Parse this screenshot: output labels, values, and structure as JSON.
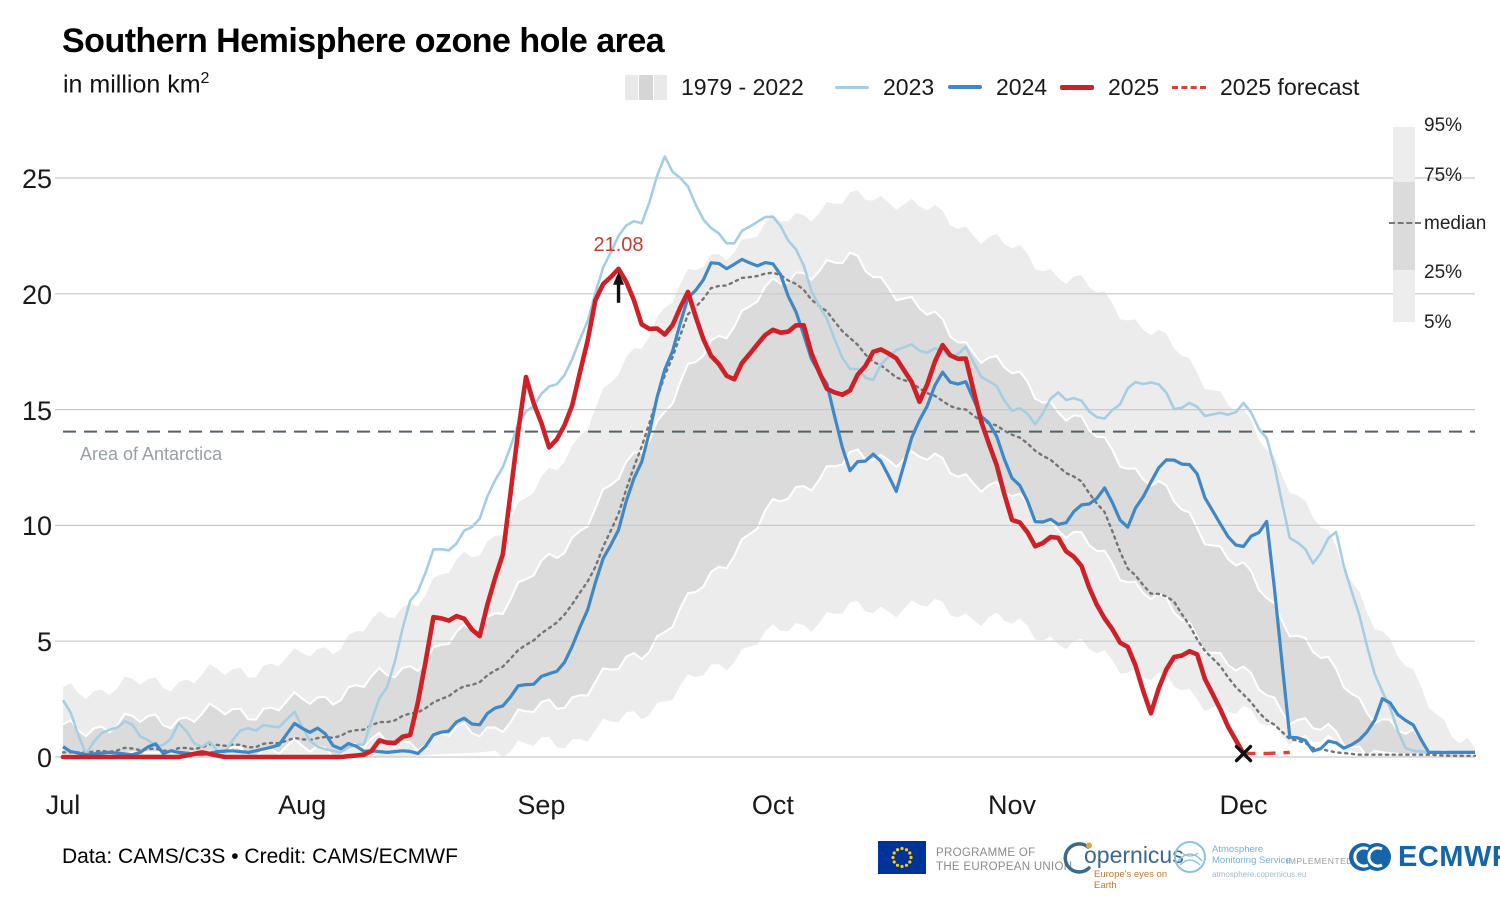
{
  "title": "Southern Hemisphere ozone hole area",
  "subtitle": {
    "text": "in million km",
    "sup": "2"
  },
  "legend": {
    "items": [
      {
        "label": "1979 - 2022",
        "type": "band"
      },
      {
        "label": "2023",
        "type": "line",
        "color": "#a6cee3"
      },
      {
        "label": "2024",
        "type": "line",
        "color": "#3f88c5"
      },
      {
        "label": "2025",
        "type": "line-thick",
        "color": "#ce2127"
      },
      {
        "label": "2025 forecast",
        "type": "line-dashed",
        "color": "#e23f3a"
      }
    ]
  },
  "percentile_legend": {
    "labels": [
      "95%",
      "75%",
      "median",
      "25%",
      "5%"
    ]
  },
  "chart_data": {
    "type": "line",
    "title": "Southern Hemisphere ozone hole area",
    "ylabel": "million km2",
    "x_axis": {
      "unit": "days since Jul 1",
      "months": [
        {
          "label": "Jul",
          "day": 0
        },
        {
          "label": "Aug",
          "day": 31
        },
        {
          "label": "Sep",
          "day": 62
        },
        {
          "label": "Oct",
          "day": 92
        },
        {
          "label": "Nov",
          "day": 123
        },
        {
          "label": "Dec",
          "day": 153
        }
      ],
      "range_days": [
        0,
        183
      ]
    },
    "y_axis": {
      "ticks": [
        0,
        5,
        10,
        15,
        20,
        25
      ],
      "range": [
        0,
        26.5
      ],
      "grid": true
    },
    "reference_line": {
      "label": "Area of Antarctica",
      "value": 14.05
    },
    "annotation": {
      "label": "21.08",
      "series": "2025",
      "day": 72,
      "value": 21.08
    },
    "end_marker": {
      "series": "2025",
      "day": 153,
      "value": 0.15,
      "symbol": "x"
    },
    "colors": {
      "outer_band": "#ececec",
      "inner_band": "#dbdbdb",
      "band_edge": "#ffffff",
      "median": "#757575",
      "y2023": "#a6cee3",
      "y2024": "#3f88c5",
      "y2025": "#ce2127",
      "forecast": "#e23f3a",
      "reference": "#51626a",
      "gridline": "#c9c9c9",
      "marker": "#111111"
    },
    "sample_days": [
      0,
      3,
      6,
      9,
      12,
      15,
      18,
      21,
      24,
      27,
      30,
      33,
      36,
      39,
      42,
      45,
      48,
      51,
      54,
      57,
      60,
      63,
      66,
      69,
      72,
      75,
      78,
      81,
      84,
      87,
      90,
      93,
      96,
      99,
      102,
      105,
      108,
      111,
      114,
      117,
      120,
      123,
      126,
      129,
      132,
      135,
      138,
      141,
      144,
      147,
      150,
      153,
      156,
      159,
      162,
      165,
      168,
      171,
      174,
      177,
      180,
      183
    ],
    "bands": {
      "p95": [
        2.8,
        2.9,
        3.0,
        3.1,
        3.2,
        3.3,
        3.5,
        3.6,
        3.8,
        4.0,
        4.2,
        4.6,
        5.0,
        5.5,
        6.0,
        6.7,
        7.5,
        8.2,
        9.0,
        10.0,
        11.0,
        12.2,
        13.5,
        15.0,
        16.5,
        18.0,
        19.5,
        20.6,
        21.5,
        22.1,
        22.6,
        23.1,
        23.5,
        23.8,
        24.0,
        24.2,
        24.1,
        23.7,
        23.3,
        22.9,
        22.4,
        21.9,
        21.4,
        20.9,
        20.4,
        19.8,
        19.1,
        18.4,
        17.6,
        16.7,
        15.7,
        14.6,
        13.3,
        11.9,
        10.4,
        8.8,
        7.1,
        5.4,
        3.8,
        2.4,
        1.2,
        0.4
      ],
      "p75": [
        1.2,
        1.3,
        1.4,
        1.5,
        1.6,
        1.7,
        1.8,
        1.9,
        2.0,
        2.1,
        2.3,
        2.5,
        2.8,
        3.1,
        3.5,
        4.0,
        4.5,
        5.1,
        5.8,
        6.6,
        7.5,
        8.5,
        9.5,
        10.7,
        12.0,
        13.5,
        15.0,
        16.5,
        17.8,
        18.9,
        19.8,
        20.4,
        21.0,
        21.3,
        21.4,
        20.9,
        20.2,
        19.3,
        18.6,
        17.9,
        17.2,
        16.5,
        15.8,
        15.1,
        14.3,
        13.5,
        12.7,
        11.9,
        11.0,
        10.0,
        9.0,
        8.0,
        6.9,
        5.7,
        4.6,
        3.5,
        2.5,
        1.6,
        0.9,
        0.4,
        0.2,
        0.1
      ],
      "p25": [
        0.1,
        0.1,
        0.1,
        0.2,
        0.2,
        0.2,
        0.2,
        0.3,
        0.3,
        0.3,
        0.3,
        0.4,
        0.4,
        0.5,
        0.6,
        0.7,
        0.8,
        1.0,
        1.2,
        1.5,
        1.8,
        2.2,
        2.6,
        3.2,
        3.8,
        4.6,
        5.5,
        6.6,
        7.8,
        9.0,
        10.0,
        11.0,
        11.8,
        12.4,
        12.8,
        13.0,
        13.0,
        12.9,
        12.6,
        12.2,
        11.7,
        11.2,
        10.6,
        10.0,
        9.3,
        8.6,
        7.8,
        7.0,
        6.2,
        5.3,
        4.4,
        3.5,
        2.7,
        1.9,
        1.3,
        0.8,
        0.4,
        0.2,
        0.1,
        0.1,
        0.0,
        0.0
      ],
      "p5": [
        0,
        0,
        0,
        0,
        0,
        0,
        0,
        0,
        0,
        0,
        0,
        0,
        0,
        0,
        0,
        0,
        0.1,
        0.15,
        0.2,
        0.3,
        0.4,
        0.6,
        0.8,
        1.1,
        1.5,
        2.0,
        2.5,
        3.1,
        3.8,
        4.4,
        5.0,
        5.4,
        5.8,
        6.1,
        6.3,
        6.4,
        6.5,
        6.5,
        6.4,
        6.2,
        6.0,
        5.7,
        5.4,
        5.1,
        4.7,
        4.3,
        3.9,
        3.5,
        3.0,
        2.6,
        2.2,
        1.8,
        1.4,
        1.0,
        0.7,
        0.4,
        0.2,
        0.1,
        0.0,
        0.0,
        0.0,
        0.0
      ]
    },
    "median": [
      0.2,
      0.2,
      0.3,
      0.3,
      0.3,
      0.4,
      0.4,
      0.5,
      0.5,
      0.6,
      0.7,
      0.8,
      1.0,
      1.2,
      1.5,
      1.9,
      2.3,
      2.8,
      3.3,
      4.0,
      4.8,
      5.5,
      6.6,
      8.2,
      10.5,
      13.5,
      16.5,
      19.0,
      20.2,
      20.6,
      20.8,
      20.8,
      20.2,
      19.2,
      18.0,
      17.1,
      16.5,
      15.9,
      15.3,
      15.0,
      14.4,
      13.9,
      13.3,
      12.6,
      11.8,
      10.5,
      8.2,
      7.1,
      6.7,
      5.1,
      3.9,
      2.6,
      1.6,
      0.9,
      0.4,
      0.2,
      0.1,
      0.1,
      0.1,
      0.1,
      0.05,
      0.05
    ],
    "lines": {
      "y2023": [
        2.3,
        0.4,
        1.4,
        1.2,
        0.3,
        1.5,
        0.4,
        0.2,
        1.5,
        1.3,
        1.6,
        0.4,
        0.2,
        0.6,
        3.0,
        6.8,
        8.8,
        9.0,
        10.5,
        12.8,
        14.8,
        15.8,
        17.2,
        20.0,
        22.5,
        23.3,
        26.0,
        24.3,
        22.7,
        22.4,
        23.2,
        22.9,
        21.3,
        18.8,
        16.5,
        16.4,
        17.9,
        17.5,
        17.3,
        17.7,
        16.2,
        14.9,
        14.6,
        15.9,
        15.1,
        14.4,
        16.1,
        16.3,
        15.0,
        15.2,
        14.8,
        15.0,
        13.8,
        9.8,
        8.4,
        9.5,
        6.1,
        2.8,
        0.3,
        0.2,
        0.2,
        0.2
      ],
      "y2024": [
        0.3,
        0.1,
        0.2,
        0.1,
        0.4,
        0.2,
        0.1,
        0.3,
        0.2,
        0.4,
        1.1,
        1.2,
        0.6,
        0.3,
        0.2,
        0.3,
        0.8,
        1.3,
        1.6,
        2.5,
        3.0,
        3.4,
        4.8,
        7.5,
        9.8,
        13.0,
        16.8,
        19.5,
        21.2,
        21.5,
        21.3,
        20.8,
        18.3,
        16.0,
        12.1,
        13.2,
        11.8,
        14.5,
        16.4,
        16.2,
        14.4,
        12.0,
        10.4,
        10.2,
        10.6,
        11.4,
        10.1,
        12.0,
        12.8,
        12.3,
        10.0,
        8.8,
        10.2,
        1.2,
        0.3,
        0.4,
        0.7,
        2.5,
        1.5,
        0.2,
        0.2,
        0.2
      ],
      "y2025": [
        0,
        0,
        0,
        0,
        0,
        0,
        0.2,
        0,
        0,
        0,
        0,
        0,
        0,
        0.1,
        0.6,
        1.0,
        5.9,
        5.9,
        5.4,
        9.0,
        16.3,
        13.2,
        15.2,
        19.7,
        21.08,
        18.9,
        18.3,
        19.8,
        17.2,
        16.5,
        17.9,
        18.3,
        18.7,
        15.8,
        15.6,
        17.6,
        17.5,
        15.3,
        17.6,
        17.2,
        13.5,
        10.2,
        9.3,
        9.6,
        8.0,
        5.8,
        4.9,
        2.0,
        4.3,
        4.5,
        2.0,
        0.15,
        null,
        null,
        null,
        null,
        null,
        null,
        null,
        null,
        null,
        null
      ]
    },
    "forecast": {
      "days": [
        153,
        156,
        159
      ],
      "values": [
        0.15,
        0.15,
        0.2
      ]
    }
  },
  "footer": {
    "credit": "Data: CAMS/C3S • Credit: CAMS/ECMWF",
    "eu": {
      "line1": "PROGRAMME OF",
      "line2": "THE EUROPEAN UNION"
    },
    "copernicus": {
      "display_text": "opernicus",
      "tagline": "Europe's eyes on Earth"
    },
    "ams": {
      "line1": "Atmosphere",
      "line2": "Monitoring Service",
      "url": "atmosphere.copernicus.eu"
    },
    "implemented_by": "IMPLEMENTED BY",
    "ecmwf": "ECMWF"
  }
}
